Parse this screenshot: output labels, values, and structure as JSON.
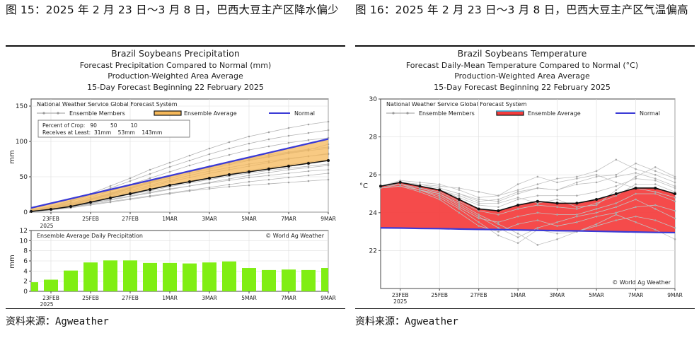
{
  "left": {
    "caption": "图 15：2025 年 2 月 23 日～3 月 8 日，巴西大豆主产区降水偏少",
    "source": "资料来源：Agweather"
  },
  "right": {
    "caption": "图 16：2025 年 2 月 23 日～3 月 8 日，巴西大豆主产区气温偏高",
    "source": "资料来源：Agweather"
  },
  "chart_data": [
    {
      "type": "line",
      "title": "Brazil Soybeans Precipitation",
      "subtitle1": "Forecast Precipitation Compared to Normal (mm)",
      "subtitle2": "Production-Weighted Area Average",
      "subtitle3": "15-Day Forecast Beginning 22 February 2025",
      "system_label": "National Weather Service Global Forecast System",
      "legend": {
        "members": "Ensemble Members",
        "average": "Ensemble Average",
        "normal": "Normal"
      },
      "crop_box": {
        "line1": "Percent of Crop:   90        50        10",
        "line2": "Receives at Least:  31mm    53mm    143mm"
      },
      "ylabel": "mm",
      "ylim": [
        0,
        160
      ],
      "yticks": [
        "0",
        "50",
        "100",
        "150"
      ],
      "x": [
        0,
        1,
        2,
        3,
        4,
        5,
        6,
        7,
        8,
        9,
        10,
        11,
        12,
        13,
        14,
        15
      ],
      "xticks": [
        {
          "i": 1,
          "label": "23FEB",
          "label2": "2025"
        },
        {
          "i": 3,
          "label": "25FEB"
        },
        {
          "i": 5,
          "label": "27FEB"
        },
        {
          "i": 7,
          "label": "1MAR"
        },
        {
          "i": 9,
          "label": "3MAR"
        },
        {
          "i": 11,
          "label": "5MAR"
        },
        {
          "i": 13,
          "label": "7MAR"
        },
        {
          "i": 15,
          "label": "9MAR"
        }
      ],
      "normal": [
        6,
        12.5,
        19,
        25.5,
        32,
        38.5,
        45,
        51.5,
        58,
        64.5,
        71,
        77.5,
        84,
        90.5,
        97,
        103.5
      ],
      "ensemble_average": [
        1,
        4,
        8,
        14,
        20,
        26,
        32,
        38,
        43,
        48,
        53,
        57,
        61,
        65,
        69,
        73
      ],
      "members": [
        [
          1,
          3,
          6,
          10,
          14,
          18,
          22,
          26,
          30,
          33,
          36,
          38,
          40,
          42,
          44,
          46
        ],
        [
          1,
          3,
          7,
          11,
          15,
          19,
          23,
          27,
          31,
          35,
          39,
          43,
          46,
          49,
          52,
          55
        ],
        [
          1,
          4,
          8,
          13,
          18,
          23,
          28,
          33,
          37,
          41,
          45,
          49,
          52,
          55,
          58,
          60
        ],
        [
          1,
          4,
          9,
          14,
          20,
          25,
          30,
          36,
          41,
          46,
          51,
          55,
          59,
          62,
          65,
          68
        ],
        [
          1,
          5,
          10,
          15,
          21,
          27,
          33,
          39,
          44,
          49,
          54,
          59,
          63,
          67,
          71,
          74
        ],
        [
          2,
          5,
          10,
          17,
          24,
          31,
          38,
          45,
          52,
          58,
          63,
          68,
          72,
          76,
          79,
          82
        ],
        [
          2,
          6,
          12,
          19,
          27,
          35,
          43,
          51,
          58,
          65,
          71,
          76,
          81,
          85,
          89,
          92
        ],
        [
          2,
          7,
          13,
          21,
          30,
          39,
          48,
          57,
          66,
          74,
          81,
          88,
          93,
          98,
          102,
          105
        ],
        [
          2,
          7,
          15,
          24,
          34,
          44,
          54,
          64,
          73,
          82,
          90,
          97,
          103,
          108,
          112,
          116
        ],
        [
          3,
          8,
          16,
          26,
          37,
          48,
          60,
          70,
          80,
          90,
          99,
          107,
          113,
          119,
          124,
          128
        ],
        [
          2,
          6,
          11,
          17,
          25,
          33,
          41,
          48,
          55,
          61,
          67,
          73,
          78,
          83,
          87,
          90
        ],
        [
          1,
          4,
          9,
          15,
          22,
          29,
          36,
          43,
          49,
          55,
          60,
          65,
          70,
          75,
          79,
          83
        ],
        [
          1,
          5,
          11,
          18,
          26,
          34,
          42,
          50,
          57,
          63,
          69,
          74,
          79,
          84,
          88,
          96
        ],
        [
          1,
          3,
          7,
          12,
          17,
          22,
          27,
          32,
          37,
          42,
          47,
          52,
          56,
          60,
          63,
          66
        ]
      ]
    },
    {
      "type": "bar",
      "title": "Ensemble Average Daily Precipitation",
      "watermark": "© World Ag Weather",
      "ylabel": "mm",
      "ylim": [
        0,
        12
      ],
      "yticks": [
        "0",
        "2",
        "4",
        "6",
        "8",
        "10",
        "12"
      ],
      "values": [
        1.8,
        2.3,
        4.1,
        5.7,
        6.1,
        6.1,
        5.6,
        5.6,
        5.5,
        5.7,
        5.9,
        4.6,
        4.2,
        4.3,
        4.2,
        4.6
      ],
      "xticks": [
        {
          "i": 1,
          "label": "23FEB",
          "label2": "2025"
        },
        {
          "i": 3,
          "label": "25FEB"
        },
        {
          "i": 5,
          "label": "27FEB"
        },
        {
          "i": 7,
          "label": "1MAR"
        },
        {
          "i": 9,
          "label": "3MAR"
        },
        {
          "i": 11,
          "label": "5MAR"
        },
        {
          "i": 13,
          "label": "7MAR"
        },
        {
          "i": 15,
          "label": "9MAR"
        }
      ]
    },
    {
      "type": "line",
      "title": "Brazil Soybeans Temperature",
      "subtitle1": "Forecast Daily-Mean Temperature Compared to Normal (°C)",
      "subtitle2": "Production-Weighted Area Average",
      "subtitle3": "15-Day Forecast Beginning 22 February 2025",
      "system_label": "National Weather Service Global Forecast System",
      "legend": {
        "members": "Ensemble Members",
        "average": "Ensemble Average",
        "normal": "Normal"
      },
      "watermark": "© World Ag Weather",
      "ylabel": "°C",
      "ylim": [
        20,
        30
      ],
      "yticks": [
        "22",
        "24",
        "26",
        "28",
        "30"
      ],
      "x": [
        0,
        1,
        2,
        3,
        4,
        5,
        6,
        7,
        8,
        9,
        10,
        11,
        12,
        13,
        14,
        15
      ],
      "xticks": [
        {
          "i": 1,
          "label": "23FEB",
          "label2": "2025"
        },
        {
          "i": 3,
          "label": "25FEB"
        },
        {
          "i": 5,
          "label": "27FEB"
        },
        {
          "i": 7,
          "label": "1MAR"
        },
        {
          "i": 9,
          "label": "3MAR"
        },
        {
          "i": 11,
          "label": "5MAR"
        },
        {
          "i": 13,
          "label": "7MAR"
        },
        {
          "i": 15,
          "label": "9MAR"
        }
      ],
      "normal": [
        23.2,
        23.19,
        23.17,
        23.16,
        23.14,
        23.12,
        23.11,
        23.09,
        23.07,
        23.05,
        23.04,
        23.02,
        23.0,
        22.98,
        22.96,
        22.95
      ],
      "ensemble_average": [
        25.4,
        25.6,
        25.4,
        25.2,
        24.7,
        24.2,
        24.1,
        24.4,
        24.6,
        24.5,
        24.5,
        24.7,
        25.0,
        25.3,
        25.3,
        25.0
      ],
      "members": [
        [
          25.4,
          25.7,
          25.6,
          25.5,
          25.2,
          24.8,
          24.9,
          25.2,
          25.5,
          25.8,
          25.9,
          26.2,
          26.8,
          26.3,
          26.0,
          25.6
        ],
        [
          25.4,
          25.6,
          25.5,
          25.3,
          25.0,
          24.7,
          24.6,
          25.0,
          25.3,
          25.2,
          25.5,
          25.6,
          25.9,
          26.1,
          25.8,
          25.4
        ],
        [
          25.4,
          25.6,
          25.4,
          25.2,
          24.8,
          24.4,
          24.3,
          24.7,
          24.9,
          24.9,
          24.9,
          25.1,
          25.4,
          25.8,
          25.7,
          25.3
        ],
        [
          25.4,
          25.5,
          25.3,
          25.1,
          24.6,
          24.1,
          23.9,
          24.2,
          24.4,
          24.3,
          24.2,
          24.5,
          24.9,
          25.5,
          25.5,
          25.1
        ],
        [
          25.4,
          25.5,
          25.2,
          24.9,
          24.3,
          23.7,
          23.5,
          23.8,
          24.0,
          23.9,
          23.9,
          24.2,
          24.5,
          25.0,
          25.0,
          24.6
        ],
        [
          25.3,
          25.4,
          25.1,
          24.7,
          24.0,
          23.3,
          23.0,
          23.4,
          23.6,
          23.3,
          23.5,
          23.8,
          24.0,
          24.3,
          24.4,
          24.1
        ],
        [
          25.3,
          25.5,
          25.2,
          24.8,
          24.2,
          23.5,
          22.8,
          22.4,
          23.1,
          22.9,
          23.0,
          23.3,
          23.6,
          23.8,
          23.6,
          23.2
        ],
        [
          25.4,
          25.6,
          25.5,
          25.4,
          25.3,
          25.1,
          24.9,
          25.5,
          25.9,
          25.6,
          25.8,
          26.0,
          25.6,
          25.3,
          25.1,
          24.8
        ],
        [
          25.4,
          25.5,
          25.3,
          25.0,
          24.4,
          23.8,
          23.2,
          22.7,
          23.2,
          23.5,
          23.8,
          24.0,
          24.3,
          24.7,
          24.2,
          23.7
        ],
        [
          25.4,
          25.6,
          25.4,
          25.2,
          24.9,
          24.5,
          24.5,
          24.8,
          24.5,
          24.7,
          24.3,
          24.4,
          25.2,
          25.9,
          26.4,
          25.9
        ],
        [
          25.3,
          25.4,
          25.2,
          25.0,
          24.5,
          23.9,
          23.4,
          22.9,
          22.3,
          22.6,
          23.0,
          23.4,
          23.9,
          23.5,
          23.1,
          22.6
        ],
        [
          25.4,
          25.6,
          25.5,
          25.3,
          25.0,
          24.6,
          24.7,
          25.1,
          25.3,
          25.2,
          25.6,
          25.9,
          26.0,
          26.6,
          26.2,
          25.8
        ]
      ]
    }
  ]
}
